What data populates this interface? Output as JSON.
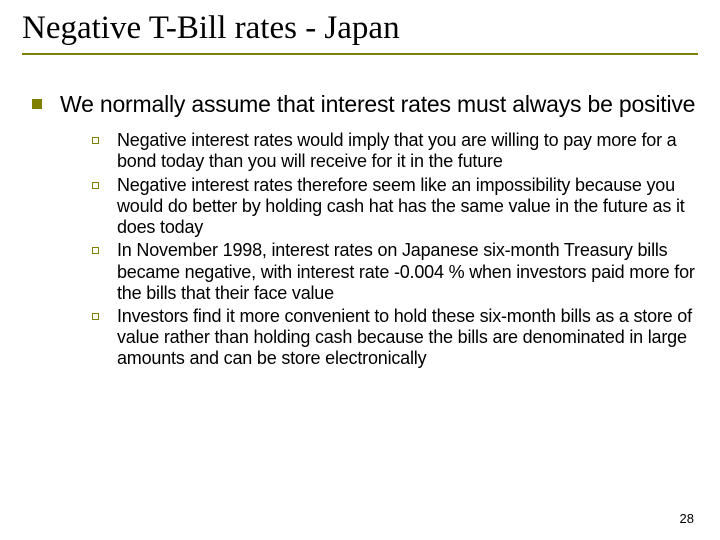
{
  "title": "Negative T-Bill rates - Japan",
  "main_point": "We normally assume that interest rates must always be positive",
  "sub_points": [
    "Negative interest rates would imply that you are willing to pay more for a bond today than you  will receive for it in the future",
    "Negative interest rates therefore seem like an impossibility because you would do better by holding cash hat has the same value in the future as it does today",
    "In November 1998, interest rates on Japanese six-month Treasury bills became negative, with interest rate -0.004 % when investors paid more for the bills that their face value",
    "Investors find it more convenient to hold these six-month bills as a store of value rather than holding cash because the bills are denominated in large amounts and can be store electronically"
  ],
  "page_number": "28",
  "colors": {
    "accent": "#808000",
    "text": "#000000",
    "background": "#ffffff"
  },
  "typography": {
    "title_fontsize": 33,
    "level1_fontsize": 23,
    "level2_fontsize": 18,
    "page_number_fontsize": 13
  }
}
